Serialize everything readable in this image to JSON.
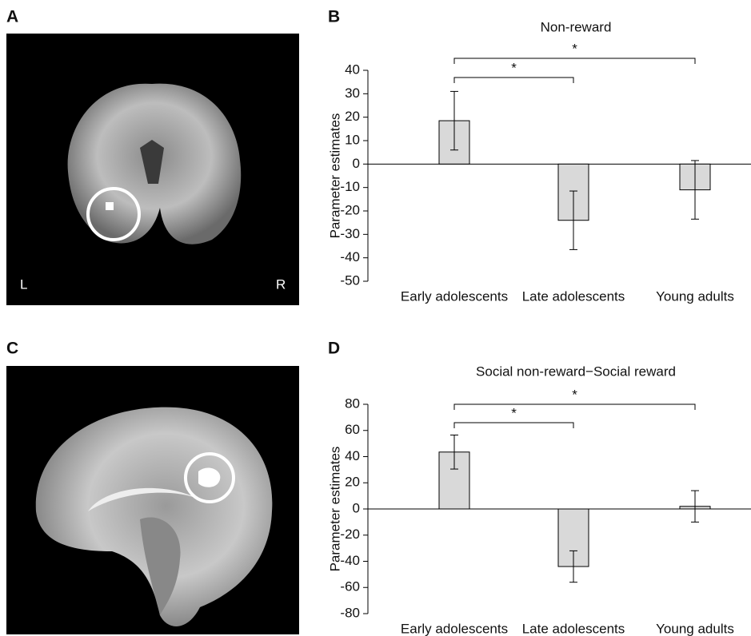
{
  "panel_labels": [
    "A",
    "B",
    "C",
    "D"
  ],
  "image_labels": [
    "L",
    "R"
  ],
  "chart_data": [
    {
      "type": "bar",
      "title": "Non-reward",
      "y_label": "Parameter estimates",
      "categories": [
        "Early adolescents",
        "Late adolescents",
        "Young adults"
      ],
      "values": [
        18.5,
        -24,
        -11
      ],
      "errors": [
        12.5,
        12.5,
        12.5
      ],
      "color": "#d9d9d9",
      "ylim": [
        -50,
        40
      ],
      "yticks": [
        -50,
        -40,
        -30,
        -20,
        -10,
        0,
        10,
        20,
        30,
        40
      ],
      "significance": [
        {
          "from": 0,
          "to": 1,
          "label": "*"
        },
        {
          "from": 0,
          "to": 2,
          "label": "*"
        }
      ]
    },
    {
      "type": "bar",
      "title": "Social non-reward−Social reward",
      "y_label": "Parameter estimates",
      "categories": [
        "Early adolescents",
        "Late adolescents",
        "Young adults"
      ],
      "values": [
        43.5,
        -44,
        2
      ],
      "errors": [
        13,
        12,
        12
      ],
      "color": "#d9d9d9",
      "ylim": [
        -80,
        80
      ],
      "yticks": [
        -80,
        -60,
        -40,
        -20,
        0,
        20,
        40,
        60,
        80
      ],
      "significance": [
        {
          "from": 0,
          "to": 1,
          "label": "*"
        },
        {
          "from": 0,
          "to": 2,
          "label": "*"
        }
      ]
    }
  ]
}
